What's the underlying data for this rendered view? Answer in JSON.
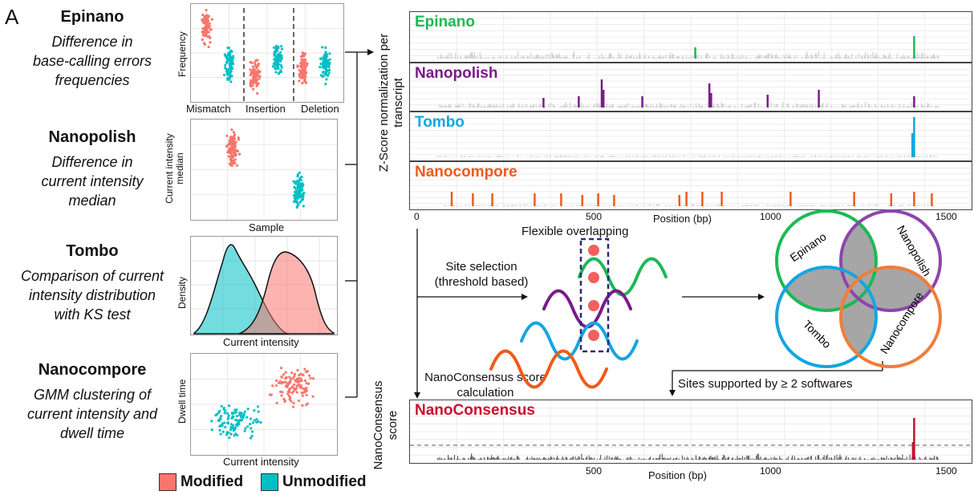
{
  "panel_letter": "A",
  "tools": [
    {
      "name": "Epinano",
      "desc": [
        "Difference in",
        "base-calling errors",
        "frequencies"
      ]
    },
    {
      "name": "Nanopolish",
      "desc": [
        "Difference in",
        "current intensity",
        "median"
      ]
    },
    {
      "name": "Tombo",
      "desc": [
        "Comparison of current",
        "intensity distribution",
        "with KS test"
      ]
    },
    {
      "name": "Nanocompore",
      "desc": [
        "GMM clustering of",
        "current intensity and",
        "dwell time"
      ]
    }
  ],
  "mini_plots": {
    "epinano": {
      "ylabel": "Frequency",
      "xlabels": [
        "Mismatch",
        "Insertion",
        "Deletion"
      ]
    },
    "nanopolish": {
      "ylabel": "Current intensity median",
      "xlabel": "Sample"
    },
    "tombo": {
      "ylabel": "Density",
      "xlabel": "Current intensity"
    },
    "nanocompore": {
      "ylabel": "Dwell time",
      "xlabel": "Current intensity"
    }
  },
  "legend": {
    "modified": "Modified",
    "unmodified": "Unmodified",
    "modified_color": "#f8766d",
    "unmodified_color": "#00bfc4"
  },
  "tracks": {
    "ylabel_lines": [
      "Z-Score normalization per",
      "transcript"
    ],
    "items": [
      {
        "name": "Epinano",
        "color": "#1db954"
      },
      {
        "name": "Nanopolish",
        "color": "#7b1a8a"
      },
      {
        "name": "Tombo",
        "color": "#13a6e0"
      },
      {
        "name": "Nanocompore",
        "color": "#f05a1a"
      }
    ],
    "xticks": [
      "0",
      "500",
      "1000",
      "1500"
    ],
    "xlabel": "Position (bp)"
  },
  "flow": {
    "flexible": "Flexible overlapping",
    "site_selection": [
      "Site selection",
      "(threshold based)"
    ],
    "score_calc": [
      "NanoConsensus score",
      "calculation"
    ],
    "supported": "Sites supported by ≥ 2 softwares"
  },
  "venn": {
    "labels": [
      "Epinano",
      "Nanopolish",
      "Tombo",
      "Nanocompore"
    ]
  },
  "consensus": {
    "title": "NanoConsensus",
    "title_color": "#c8102e",
    "ylabel_lines": [
      "NanoConsensus",
      "score"
    ],
    "xticks": [
      "500",
      "1000",
      "1500"
    ],
    "xlabel": "Position (bp)"
  }
}
